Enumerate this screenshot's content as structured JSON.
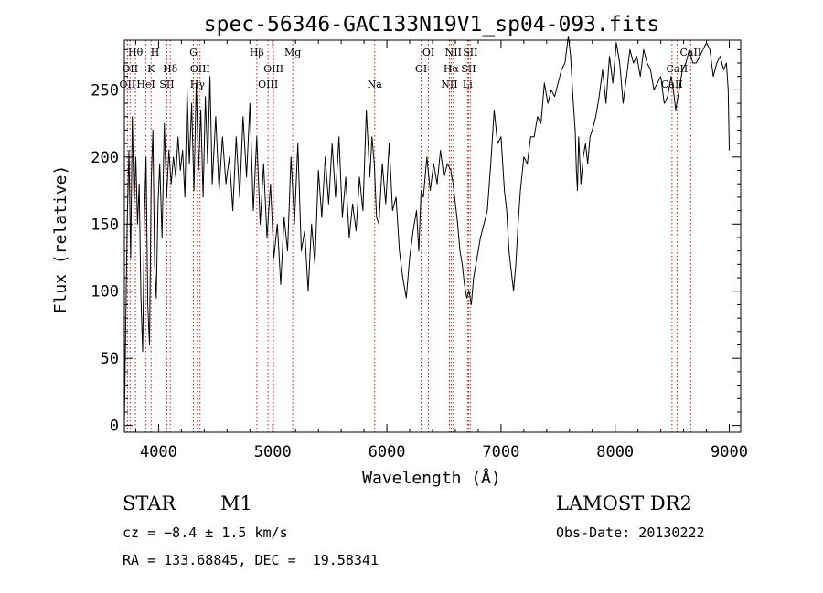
{
  "chart_data": {
    "type": "line",
    "title": "spec-56346-GAC133N19V1_sp04-093.fits",
    "xlabel": "Wavelength (Å)",
    "ylabel": "Flux (relative)",
    "xlim": [
      3700,
      9100
    ],
    "ylim": [
      -5,
      287
    ],
    "xticks": [
      4000,
      5000,
      6000,
      7000,
      8000,
      9000
    ],
    "yticks": [
      0,
      50,
      100,
      150,
      200,
      250
    ],
    "grid": false,
    "series": [
      {
        "color": "#000000",
        "x": [
          3700,
          3710,
          3725,
          3740,
          3755,
          3770,
          3785,
          3800,
          3815,
          3830,
          3845,
          3860,
          3875,
          3890,
          3905,
          3920,
          3935,
          3950,
          3965,
          3980,
          3995,
          4010,
          4030,
          4050,
          4070,
          4090,
          4110,
          4130,
          4150,
          4170,
          4190,
          4210,
          4230,
          4250,
          4270,
          4290,
          4310,
          4330,
          4350,
          4370,
          4390,
          4410,
          4430,
          4450,
          4470,
          4500,
          4530,
          4560,
          4590,
          4620,
          4650,
          4680,
          4710,
          4740,
          4770,
          4800,
          4830,
          4860,
          4890,
          4920,
          4950,
          4980,
          5010,
          5040,
          5070,
          5100,
          5130,
          5160,
          5190,
          5220,
          5250,
          5280,
          5310,
          5340,
          5370,
          5400,
          5430,
          5460,
          5490,
          5520,
          5550,
          5580,
          5610,
          5640,
          5670,
          5700,
          5730,
          5760,
          5790,
          5820,
          5850,
          5870,
          5890,
          5910,
          5930,
          5960,
          5990,
          6020,
          6050,
          6080,
          6110,
          6140,
          6170,
          6200,
          6230,
          6260,
          6280,
          6300,
          6320,
          6350,
          6380,
          6410,
          6440,
          6470,
          6500,
          6530,
          6560,
          6580,
          6600,
          6620,
          6640,
          6660,
          6680,
          6700,
          6720,
          6740,
          6760,
          6790,
          6820,
          6850,
          6880,
          6910,
          6940,
          6970,
          7000,
          7030,
          7050,
          7070,
          7090,
          7110,
          7130,
          7150,
          7170,
          7200,
          7230,
          7260,
          7290,
          7320,
          7350,
          7380,
          7410,
          7440,
          7470,
          7500,
          7530,
          7560,
          7590,
          7610,
          7630,
          7650,
          7660,
          7670,
          7680,
          7700,
          7720,
          7740,
          7760,
          7780,
          7800,
          7830,
          7860,
          7890,
          7920,
          7950,
          7980,
          8010,
          8040,
          8070,
          8100,
          8130,
          8160,
          8190,
          8220,
          8250,
          8280,
          8310,
          8340,
          8370,
          8400,
          8430,
          8460,
          8490,
          8510,
          8530,
          8560,
          8590,
          8620,
          8650,
          8680,
          8710,
          8740,
          8770,
          8800,
          8830,
          8860,
          8890,
          8920,
          8950,
          8975,
          8990,
          9000
        ],
        "y": [
          0,
          60,
          150,
          205,
          125,
          230,
          165,
          200,
          150,
          180,
          95,
          55,
          150,
          200,
          90,
          60,
          180,
          220,
          120,
          95,
          165,
          195,
          140,
          225,
          170,
          205,
          180,
          200,
          185,
          215,
          190,
          205,
          170,
          250,
          195,
          240,
          175,
          255,
          190,
          235,
          170,
          245,
          195,
          260,
          180,
          230,
          175,
          215,
          180,
          200,
          160,
          215,
          170,
          230,
          185,
          240,
          160,
          215,
          150,
          195,
          140,
          180,
          125,
          150,
          105,
          155,
          130,
          200,
          150,
          210,
          130,
          145,
          100,
          150,
          120,
          190,
          155,
          200,
          165,
          210,
          170,
          215,
          155,
          185,
          140,
          165,
          145,
          185,
          160,
          235,
          185,
          215,
          195,
          155,
          150,
          195,
          165,
          210,
          160,
          170,
          130,
          110,
          95,
          125,
          145,
          160,
          130,
          175,
          170,
          200,
          175,
          195,
          180,
          205,
          185,
          195,
          190,
          180,
          165,
          150,
          130,
          120,
          105,
          95,
          100,
          90,
          110,
          125,
          140,
          150,
          160,
          195,
          235,
          210,
          215,
          175,
          160,
          130,
          115,
          100,
          120,
          150,
          175,
          200,
          195,
          215,
          215,
          230,
          225,
          255,
          240,
          250,
          245,
          255,
          265,
          270,
          290,
          275,
          245,
          220,
          190,
          175,
          215,
          180,
          200,
          210,
          195,
          215,
          220,
          230,
          245,
          265,
          240,
          275,
          255,
          285,
          270,
          240,
          260,
          280,
          270,
          275,
          260,
          280,
          270,
          265,
          250,
          255,
          260,
          240,
          245,
          260,
          250,
          235,
          250,
          265,
          270,
          280,
          270,
          270,
          275,
          280,
          285,
          280,
          260,
          270,
          275,
          265,
          270,
          250,
          205
        ]
      }
    ],
    "line_markers": [
      {
        "x": 3727,
        "labels": [
          "OII"
        ],
        "row": 2
      },
      {
        "x": 3750,
        "labels": [
          "OII"
        ],
        "row": 1
      },
      {
        "x": 3797,
        "labels": [
          "Hθ"
        ],
        "row": 0
      },
      {
        "x": 3889,
        "labels": [
          "HeI"
        ],
        "row": 2
      },
      {
        "x": 3934,
        "labels": [
          "K"
        ],
        "row": 1
      },
      {
        "x": 3969,
        "labels": [
          "H"
        ],
        "row": 0
      },
      {
        "x": 4072,
        "labels": [
          "SII"
        ],
        "row": 2
      },
      {
        "x": 4102,
        "labels": [
          "Hδ"
        ],
        "row": 1
      },
      {
        "x": 4305,
        "labels": [
          "G"
        ],
        "row": 0
      },
      {
        "x": 4340,
        "labels": [
          "Hγ"
        ],
        "row": 2
      },
      {
        "x": 4363,
        "labels": [
          "OIII"
        ],
        "row": 1
      },
      {
        "x": 4861,
        "labels": [
          "Hβ"
        ],
        "row": 0
      },
      {
        "x": 4959,
        "labels": [
          "OIII"
        ],
        "row": 2
      },
      {
        "x": 5007,
        "labels": [
          "OIII"
        ],
        "row": 1
      },
      {
        "x": 5175,
        "labels": [
          "Mg"
        ],
        "row": 0
      },
      {
        "x": 5893,
        "labels": [
          "Na"
        ],
        "row": 2
      },
      {
        "x": 6300,
        "labels": [
          "OI"
        ],
        "row": 1
      },
      {
        "x": 6364,
        "labels": [
          "OI"
        ],
        "row": 0
      },
      {
        "x": 6548,
        "labels": [
          "NII"
        ],
        "row": 2
      },
      {
        "x": 6563,
        "labels": [
          "Hα"
        ],
        "row": 1
      },
      {
        "x": 6583,
        "labels": [
          "NII"
        ],
        "row": 0
      },
      {
        "x": 6707,
        "labels": [
          "Li"
        ],
        "row": 2
      },
      {
        "x": 6716,
        "labels": [
          "SII"
        ],
        "row": 1
      },
      {
        "x": 6731,
        "labels": [
          "SII"
        ],
        "row": 0
      },
      {
        "x": 8498,
        "labels": [
          "CaII"
        ],
        "row": 2
      },
      {
        "x": 8542,
        "labels": [
          "CaII"
        ],
        "row": 1
      },
      {
        "x": 8662,
        "labels": [
          "CaII"
        ],
        "row": 0
      }
    ]
  },
  "info": {
    "object_class": "STAR",
    "subclass": "M1",
    "survey": "LAMOST DR2",
    "cz": "cz = −8.4 ± 1.5 km/s",
    "obs_date": "Obs-Date: 20130222",
    "coords": "RA = 133.68845, DEC =  19.58341"
  }
}
